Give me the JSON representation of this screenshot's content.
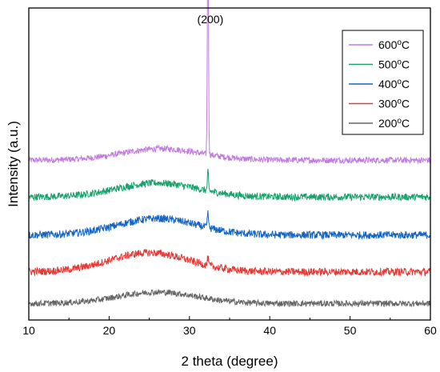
{
  "chart_data": {
    "type": "line",
    "title": "",
    "xlabel": "2 theta (degree)",
    "ylabel": "Intensity (a.u.)",
    "xlim": [
      10,
      60
    ],
    "x_ticks": [
      "10",
      "20",
      "30",
      "40",
      "50",
      "60"
    ],
    "y_ticks_shown": false,
    "grid": false,
    "legend_position": "top-right",
    "annotation": {
      "text": "(200)",
      "x": 32.3
    },
    "series": [
      {
        "name": "600",
        "unit": "oC",
        "color": "#c27be0",
        "baseline": 6.0,
        "hump": 0.45,
        "hump_center": 26.5,
        "peak": 8.9,
        "peak_x": 32.3,
        "noise": 0.12
      },
      {
        "name": "500",
        "unit": "oC",
        "color": "#1aa06a",
        "baseline": 4.55,
        "hump": 0.55,
        "hump_center": 26.0,
        "peak": 0.75,
        "peak_x": 32.3,
        "noise": 0.14
      },
      {
        "name": "400",
        "unit": "oC",
        "color": "#1565c0",
        "baseline": 3.05,
        "hump": 0.65,
        "hump_center": 26.0,
        "peak": 0.6,
        "peak_x": 32.3,
        "noise": 0.15
      },
      {
        "name": "300",
        "unit": "oC",
        "color": "#e53935",
        "baseline": 1.6,
        "hump": 0.75,
        "hump_center": 25.0,
        "peak": 0.3,
        "peak_x": 32.3,
        "noise": 0.15
      },
      {
        "name": "200",
        "unit": "oC",
        "color": "#666666",
        "baseline": 0.35,
        "hump": 0.45,
        "hump_center": 26.0,
        "peak": 0.0,
        "peak_x": 32.3,
        "noise": 0.12
      }
    ],
    "ylim": [
      -0.3,
      12.0
    ]
  }
}
